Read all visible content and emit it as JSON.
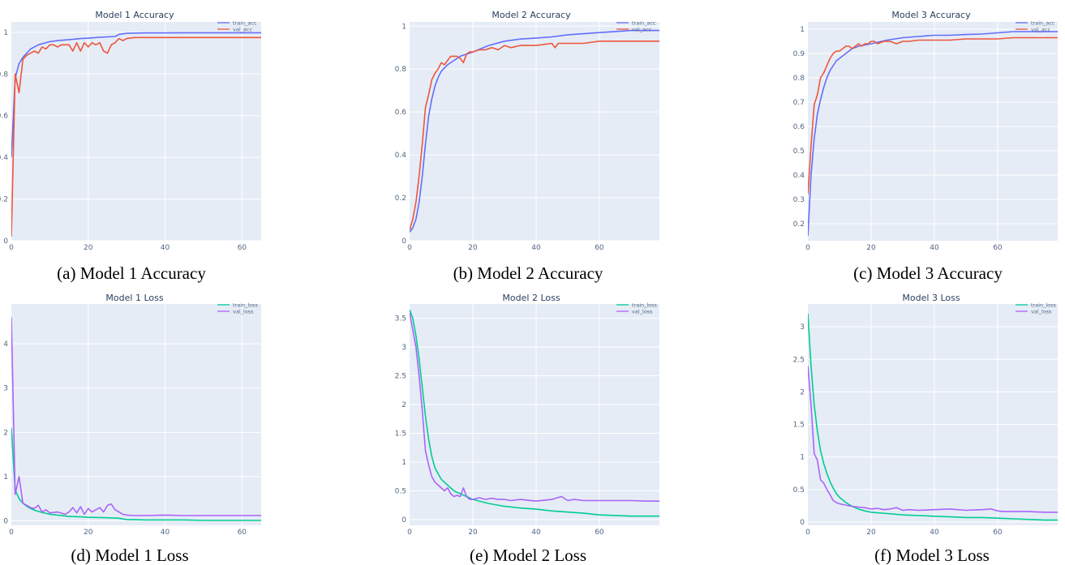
{
  "colors": {
    "plot_bg": "#e5ecf6",
    "grid": "#ffffff",
    "train_acc": "#636efa",
    "val_acc": "#ef553b",
    "train_loss": "#00cc96",
    "val_loss": "#ab63fa"
  },
  "chart_data": [
    {
      "type": "line",
      "title": "Model 1 Accuracy",
      "caption": "(a) Model 1 Accuracy",
      "xlim": [
        0,
        65
      ],
      "ylim": [
        0,
        1.05
      ],
      "xticks": [
        0,
        20,
        40,
        60
      ],
      "yticks": [
        0,
        0.2,
        0.4,
        0.6,
        0.8,
        1
      ],
      "ytick_labels": [
        "0",
        "0.2",
        "0.4",
        "0.6",
        "0.8",
        "1"
      ],
      "grid": true,
      "legend": "top-right",
      "series": [
        {
          "name": "train_acc",
          "color_key": "train_acc",
          "x": [
            0,
            1,
            2,
            3,
            4,
            5,
            6,
            7,
            8,
            10,
            12,
            15,
            18,
            20,
            22,
            25,
            27,
            28,
            30,
            35,
            40,
            45,
            50,
            55,
            60,
            65
          ],
          "y": [
            0.4,
            0.78,
            0.85,
            0.88,
            0.9,
            0.92,
            0.93,
            0.94,
            0.945,
            0.955,
            0.96,
            0.965,
            0.97,
            0.972,
            0.975,
            0.978,
            0.98,
            0.99,
            0.995,
            0.997,
            0.997,
            0.998,
            0.998,
            0.998,
            0.998,
            0.998
          ]
        },
        {
          "name": "val_acc",
          "color_key": "val_acc",
          "x": [
            0,
            1,
            2,
            3,
            4,
            5,
            6,
            7,
            8,
            9,
            10,
            11,
            12,
            13,
            14,
            15,
            16,
            17,
            18,
            19,
            20,
            21,
            22,
            23,
            24,
            25,
            26,
            27,
            28,
            29,
            30,
            32,
            35,
            40,
            45,
            50,
            55,
            60,
            65
          ],
          "y": [
            0.02,
            0.8,
            0.71,
            0.87,
            0.89,
            0.9,
            0.91,
            0.9,
            0.93,
            0.92,
            0.94,
            0.94,
            0.93,
            0.94,
            0.94,
            0.94,
            0.91,
            0.95,
            0.91,
            0.95,
            0.93,
            0.95,
            0.94,
            0.95,
            0.91,
            0.9,
            0.94,
            0.95,
            0.97,
            0.96,
            0.97,
            0.975,
            0.975,
            0.975,
            0.975,
            0.975,
            0.975,
            0.975,
            0.975
          ]
        }
      ]
    },
    {
      "type": "line",
      "title": "Model 2 Accuracy",
      "caption": "(b) Model 2 Accuracy",
      "xlim": [
        0,
        79
      ],
      "ylim": [
        0,
        1.02
      ],
      "xticks": [
        0,
        20,
        40,
        60
      ],
      "yticks": [
        0,
        0.2,
        0.4,
        0.6,
        0.8,
        1
      ],
      "ytick_labels": [
        "0",
        "0.2",
        "0.4",
        "0.6",
        "0.8",
        "1"
      ],
      "grid": true,
      "legend": "top-right",
      "series": [
        {
          "name": "train_acc",
          "color_key": "train_acc",
          "x": [
            0,
            1,
            2,
            3,
            4,
            5,
            6,
            7,
            8,
            9,
            10,
            12,
            14,
            16,
            18,
            20,
            25,
            30,
            35,
            40,
            45,
            50,
            55,
            60,
            65,
            70,
            75,
            79
          ],
          "y": [
            0.04,
            0.06,
            0.1,
            0.18,
            0.3,
            0.45,
            0.58,
            0.66,
            0.72,
            0.76,
            0.79,
            0.82,
            0.84,
            0.86,
            0.87,
            0.88,
            0.91,
            0.93,
            0.94,
            0.945,
            0.95,
            0.96,
            0.965,
            0.97,
            0.975,
            0.98,
            0.98,
            0.98
          ]
        },
        {
          "name": "val_acc",
          "color_key": "val_acc",
          "x": [
            0,
            1,
            2,
            3,
            4,
            5,
            6,
            7,
            8,
            9,
            10,
            11,
            12,
            13,
            14,
            15,
            16,
            17,
            18,
            19,
            20,
            22,
            24,
            26,
            28,
            30,
            32,
            35,
            40,
            45,
            46,
            47,
            50,
            55,
            60,
            65,
            70,
            75,
            79
          ],
          "y": [
            0.05,
            0.1,
            0.18,
            0.3,
            0.45,
            0.62,
            0.68,
            0.75,
            0.78,
            0.8,
            0.83,
            0.82,
            0.84,
            0.86,
            0.86,
            0.86,
            0.85,
            0.83,
            0.87,
            0.88,
            0.88,
            0.89,
            0.89,
            0.9,
            0.89,
            0.91,
            0.9,
            0.91,
            0.91,
            0.92,
            0.9,
            0.92,
            0.92,
            0.92,
            0.93,
            0.93,
            0.93,
            0.93,
            0.93
          ]
        }
      ]
    },
    {
      "type": "line",
      "title": "Model 3 Accuracy",
      "caption": "(c) Model 3 Accuracy",
      "xlim": [
        0,
        79
      ],
      "ylim": [
        0.13,
        1.03
      ],
      "xticks": [
        0,
        20,
        40,
        60
      ],
      "yticks": [
        0.2,
        0.3,
        0.4,
        0.5,
        0.6,
        0.7,
        0.8,
        0.9,
        1
      ],
      "ytick_labels": [
        "0.2",
        "0.3",
        "0.4",
        "0.5",
        "0.6",
        "0.7",
        "0.8",
        "0.9",
        "1"
      ],
      "grid": true,
      "legend": "top-right",
      "series": [
        {
          "name": "train_acc",
          "color_key": "train_acc",
          "x": [
            0,
            1,
            2,
            3,
            4,
            5,
            6,
            7,
            8,
            9,
            10,
            12,
            14,
            16,
            18,
            20,
            25,
            30,
            35,
            40,
            45,
            50,
            55,
            60,
            65,
            70,
            75,
            79
          ],
          "y": [
            0.15,
            0.4,
            0.55,
            0.65,
            0.71,
            0.76,
            0.8,
            0.83,
            0.85,
            0.87,
            0.88,
            0.9,
            0.92,
            0.93,
            0.935,
            0.94,
            0.955,
            0.965,
            0.97,
            0.975,
            0.975,
            0.978,
            0.98,
            0.985,
            0.99,
            0.99,
            0.99,
            0.99
          ]
        },
        {
          "name": "val_acc",
          "color_key": "val_acc",
          "x": [
            0,
            1,
            2,
            3,
            4,
            5,
            6,
            7,
            8,
            9,
            10,
            11,
            12,
            13,
            14,
            15,
            16,
            17,
            18,
            19,
            20,
            21,
            22,
            24,
            26,
            28,
            30,
            32,
            35,
            40,
            45,
            50,
            55,
            60,
            65,
            70,
            75,
            79
          ],
          "y": [
            0.32,
            0.52,
            0.69,
            0.73,
            0.8,
            0.82,
            0.85,
            0.88,
            0.9,
            0.91,
            0.91,
            0.92,
            0.93,
            0.93,
            0.92,
            0.93,
            0.94,
            0.93,
            0.94,
            0.94,
            0.95,
            0.95,
            0.94,
            0.95,
            0.95,
            0.94,
            0.95,
            0.95,
            0.955,
            0.955,
            0.955,
            0.96,
            0.96,
            0.96,
            0.965,
            0.965,
            0.965,
            0.965
          ]
        }
      ]
    },
    {
      "type": "line",
      "title": "Model 1 Loss",
      "caption": "(d) Model 1 Loss",
      "xlim": [
        0,
        65
      ],
      "ylim": [
        -0.1,
        4.9
      ],
      "xticks": [
        0,
        20,
        40,
        60
      ],
      "yticks": [
        0,
        1,
        2,
        3,
        4
      ],
      "ytick_labels": [
        "0",
        "1",
        "2",
        "3",
        "4"
      ],
      "grid": true,
      "legend": "top-right",
      "series": [
        {
          "name": "train_loss",
          "color_key": "train_loss",
          "x": [
            0,
            1,
            2,
            3,
            4,
            5,
            6,
            8,
            10,
            12,
            15,
            18,
            20,
            25,
            28,
            30,
            35,
            40,
            45,
            50,
            55,
            60,
            65
          ],
          "y": [
            2.1,
            0.7,
            0.5,
            0.4,
            0.33,
            0.28,
            0.24,
            0.19,
            0.15,
            0.13,
            0.1,
            0.09,
            0.08,
            0.07,
            0.06,
            0.03,
            0.02,
            0.02,
            0.02,
            0.01,
            0.01,
            0.01,
            0.01
          ]
        },
        {
          "name": "val_loss",
          "color_key": "val_loss",
          "x": [
            0,
            1,
            2,
            3,
            4,
            5,
            6,
            7,
            8,
            9,
            10,
            12,
            14,
            15,
            16,
            17,
            18,
            19,
            20,
            21,
            22,
            23,
            24,
            25,
            26,
            27,
            28,
            29,
            30,
            32,
            35,
            40,
            45,
            50,
            55,
            60,
            65
          ],
          "y": [
            4.6,
            0.6,
            1.0,
            0.4,
            0.35,
            0.3,
            0.28,
            0.35,
            0.2,
            0.25,
            0.18,
            0.2,
            0.15,
            0.2,
            0.3,
            0.18,
            0.32,
            0.15,
            0.28,
            0.2,
            0.25,
            0.3,
            0.2,
            0.35,
            0.38,
            0.25,
            0.2,
            0.15,
            0.13,
            0.12,
            0.12,
            0.13,
            0.12,
            0.12,
            0.12,
            0.12,
            0.12
          ]
        }
      ]
    },
    {
      "type": "line",
      "title": "Model 2 Loss",
      "caption": "(e) Model 2 Loss",
      "xlim": [
        0,
        79
      ],
      "ylim": [
        -0.1,
        3.75
      ],
      "xticks": [
        0,
        20,
        40,
        60
      ],
      "yticks": [
        0,
        0.5,
        1,
        1.5,
        2,
        2.5,
        3,
        3.5
      ],
      "ytick_labels": [
        "0",
        "0.5",
        "1",
        "1.5",
        "2",
        "2.5",
        "3",
        "3.5"
      ],
      "grid": true,
      "legend": "top-right",
      "series": [
        {
          "name": "train_loss",
          "color_key": "train_loss",
          "x": [
            0,
            1,
            2,
            3,
            4,
            5,
            6,
            7,
            8,
            9,
            10,
            12,
            14,
            16,
            18,
            20,
            25,
            30,
            35,
            40,
            45,
            50,
            55,
            60,
            65,
            70,
            75,
            79
          ],
          "y": [
            3.65,
            3.5,
            3.2,
            2.8,
            2.3,
            1.8,
            1.4,
            1.1,
            0.9,
            0.8,
            0.7,
            0.6,
            0.5,
            0.45,
            0.4,
            0.35,
            0.28,
            0.23,
            0.2,
            0.18,
            0.15,
            0.13,
            0.11,
            0.08,
            0.07,
            0.06,
            0.06,
            0.06
          ]
        },
        {
          "name": "val_loss",
          "color_key": "val_loss",
          "x": [
            0,
            1,
            2,
            3,
            4,
            5,
            6,
            7,
            8,
            9,
            10,
            11,
            12,
            13,
            14,
            15,
            16,
            17,
            18,
            19,
            20,
            22,
            24,
            26,
            28,
            30,
            32,
            35,
            40,
            45,
            48,
            50,
            52,
            55,
            60,
            65,
            70,
            75,
            79
          ],
          "y": [
            3.6,
            3.3,
            3.0,
            2.5,
            1.9,
            1.2,
            0.95,
            0.75,
            0.65,
            0.6,
            0.55,
            0.5,
            0.55,
            0.45,
            0.4,
            0.42,
            0.4,
            0.55,
            0.4,
            0.35,
            0.35,
            0.38,
            0.35,
            0.37,
            0.35,
            0.35,
            0.33,
            0.35,
            0.32,
            0.35,
            0.4,
            0.33,
            0.35,
            0.33,
            0.33,
            0.33,
            0.33,
            0.32,
            0.32
          ]
        }
      ]
    },
    {
      "type": "line",
      "title": "Model 3 Loss",
      "caption": "(f) Model 3 Loss",
      "xlim": [
        0,
        79
      ],
      "ylim": [
        -0.05,
        3.35
      ],
      "xticks": [
        0,
        20,
        40,
        60
      ],
      "yticks": [
        0,
        0.5,
        1,
        1.5,
        2,
        2.5,
        3
      ],
      "ytick_labels": [
        "0",
        "0.5",
        "1",
        "1.5",
        "2",
        "2.5",
        "3"
      ],
      "grid": true,
      "legend": "top-right",
      "series": [
        {
          "name": "train_loss",
          "color_key": "train_loss",
          "x": [
            0,
            1,
            2,
            3,
            4,
            5,
            6,
            7,
            8,
            9,
            10,
            12,
            14,
            16,
            18,
            20,
            25,
            30,
            35,
            40,
            45,
            50,
            55,
            60,
            65,
            70,
            75,
            79
          ],
          "y": [
            3.2,
            2.4,
            1.8,
            1.4,
            1.1,
            0.9,
            0.75,
            0.62,
            0.52,
            0.44,
            0.38,
            0.3,
            0.24,
            0.2,
            0.17,
            0.15,
            0.13,
            0.11,
            0.1,
            0.09,
            0.08,
            0.07,
            0.07,
            0.06,
            0.05,
            0.04,
            0.03,
            0.03
          ]
        },
        {
          "name": "val_loss",
          "color_key": "val_loss",
          "x": [
            0,
            1,
            2,
            3,
            4,
            5,
            6,
            7,
            8,
            9,
            10,
            12,
            14,
            16,
            18,
            20,
            22,
            24,
            26,
            28,
            30,
            32,
            35,
            40,
            45,
            50,
            55,
            58,
            60,
            62,
            65,
            70,
            75,
            79
          ],
          "y": [
            2.4,
            1.8,
            1.05,
            0.95,
            0.65,
            0.6,
            0.5,
            0.42,
            0.33,
            0.3,
            0.28,
            0.26,
            0.24,
            0.23,
            0.22,
            0.2,
            0.21,
            0.19,
            0.2,
            0.22,
            0.18,
            0.19,
            0.18,
            0.19,
            0.2,
            0.18,
            0.19,
            0.2,
            0.17,
            0.16,
            0.16,
            0.16,
            0.15,
            0.15
          ]
        }
      ]
    }
  ]
}
